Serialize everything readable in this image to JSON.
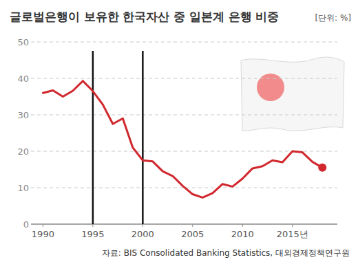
{
  "chart_data": {
    "type": "line",
    "title": "글로벌은행이 보유한 한국자산 중 일본계 은행 비중",
    "unit": "[단위: %]",
    "source": "자료: BIS Consolidated Banking Statistics, 대외경제정책연구원",
    "x": [
      1990,
      1991,
      1992,
      1993,
      1994,
      1995,
      1996,
      1997,
      1998,
      1999,
      2000,
      2001,
      2002,
      2003,
      2004,
      2005,
      2006,
      2007,
      2008,
      2009,
      2010,
      2011,
      2012,
      2013,
      2014,
      2015,
      2016,
      2017,
      2018
    ],
    "values": [
      36,
      36.7,
      35,
      36.6,
      39.3,
      36.5,
      32.8,
      27.5,
      29,
      21,
      17.5,
      17.2,
      14.5,
      13.2,
      10.5,
      8.2,
      7.3,
      8.5,
      11,
      10.3,
      12.5,
      15.3,
      15.9,
      17.5,
      17,
      20,
      19.7,
      17.1,
      15.5
    ],
    "color": "#d1282e",
    "marker": "end-dot",
    "vlines": [
      1995,
      2000
    ],
    "xlim": [
      1988.8,
      2019.5
    ],
    "xticks": [
      1990,
      1995,
      2000,
      2005,
      2010,
      {
        "value": 2015,
        "label": "2015년"
      }
    ],
    "ylim": [
      0,
      50
    ],
    "yticks": [
      0,
      10,
      20,
      30,
      40,
      50
    ],
    "grid": true
  }
}
